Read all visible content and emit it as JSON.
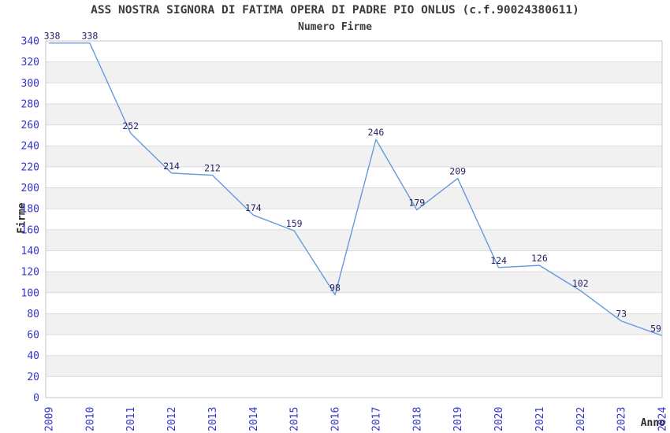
{
  "chart_data": {
    "type": "line",
    "title": "ASS NOSTRA SIGNORA DI FATIMA OPERA DI PADRE PIO ONLUS (c.f.90024380611)",
    "subtitle": "Numero Firme",
    "xlabel": "Anno",
    "ylabel": "Firme",
    "x": [
      "2009",
      "2010",
      "2011",
      "2012",
      "2013",
      "2014",
      "2015",
      "2016",
      "2017",
      "2018",
      "2019",
      "2020",
      "2021",
      "2022",
      "2023",
      "2024"
    ],
    "values": [
      338,
      338,
      252,
      214,
      212,
      174,
      159,
      98,
      246,
      179,
      209,
      124,
      126,
      102,
      73,
      59
    ],
    "ylim": [
      0,
      340
    ],
    "ytick_step": 20,
    "yticks": [
      0,
      20,
      40,
      60,
      80,
      100,
      120,
      140,
      160,
      180,
      200,
      220,
      240,
      260,
      280,
      300,
      320,
      340
    ],
    "grid": true,
    "legend_position": "none",
    "point_labels_shown": true,
    "colors": {
      "line": "#6699dd",
      "tick_label": "#3333cc",
      "point_label": "#222266",
      "band_gray": "#f1f1f1",
      "gridline": "#dcdcdc",
      "plot_border": "#c6c6c6",
      "title_text": "#3c3c3c"
    }
  }
}
